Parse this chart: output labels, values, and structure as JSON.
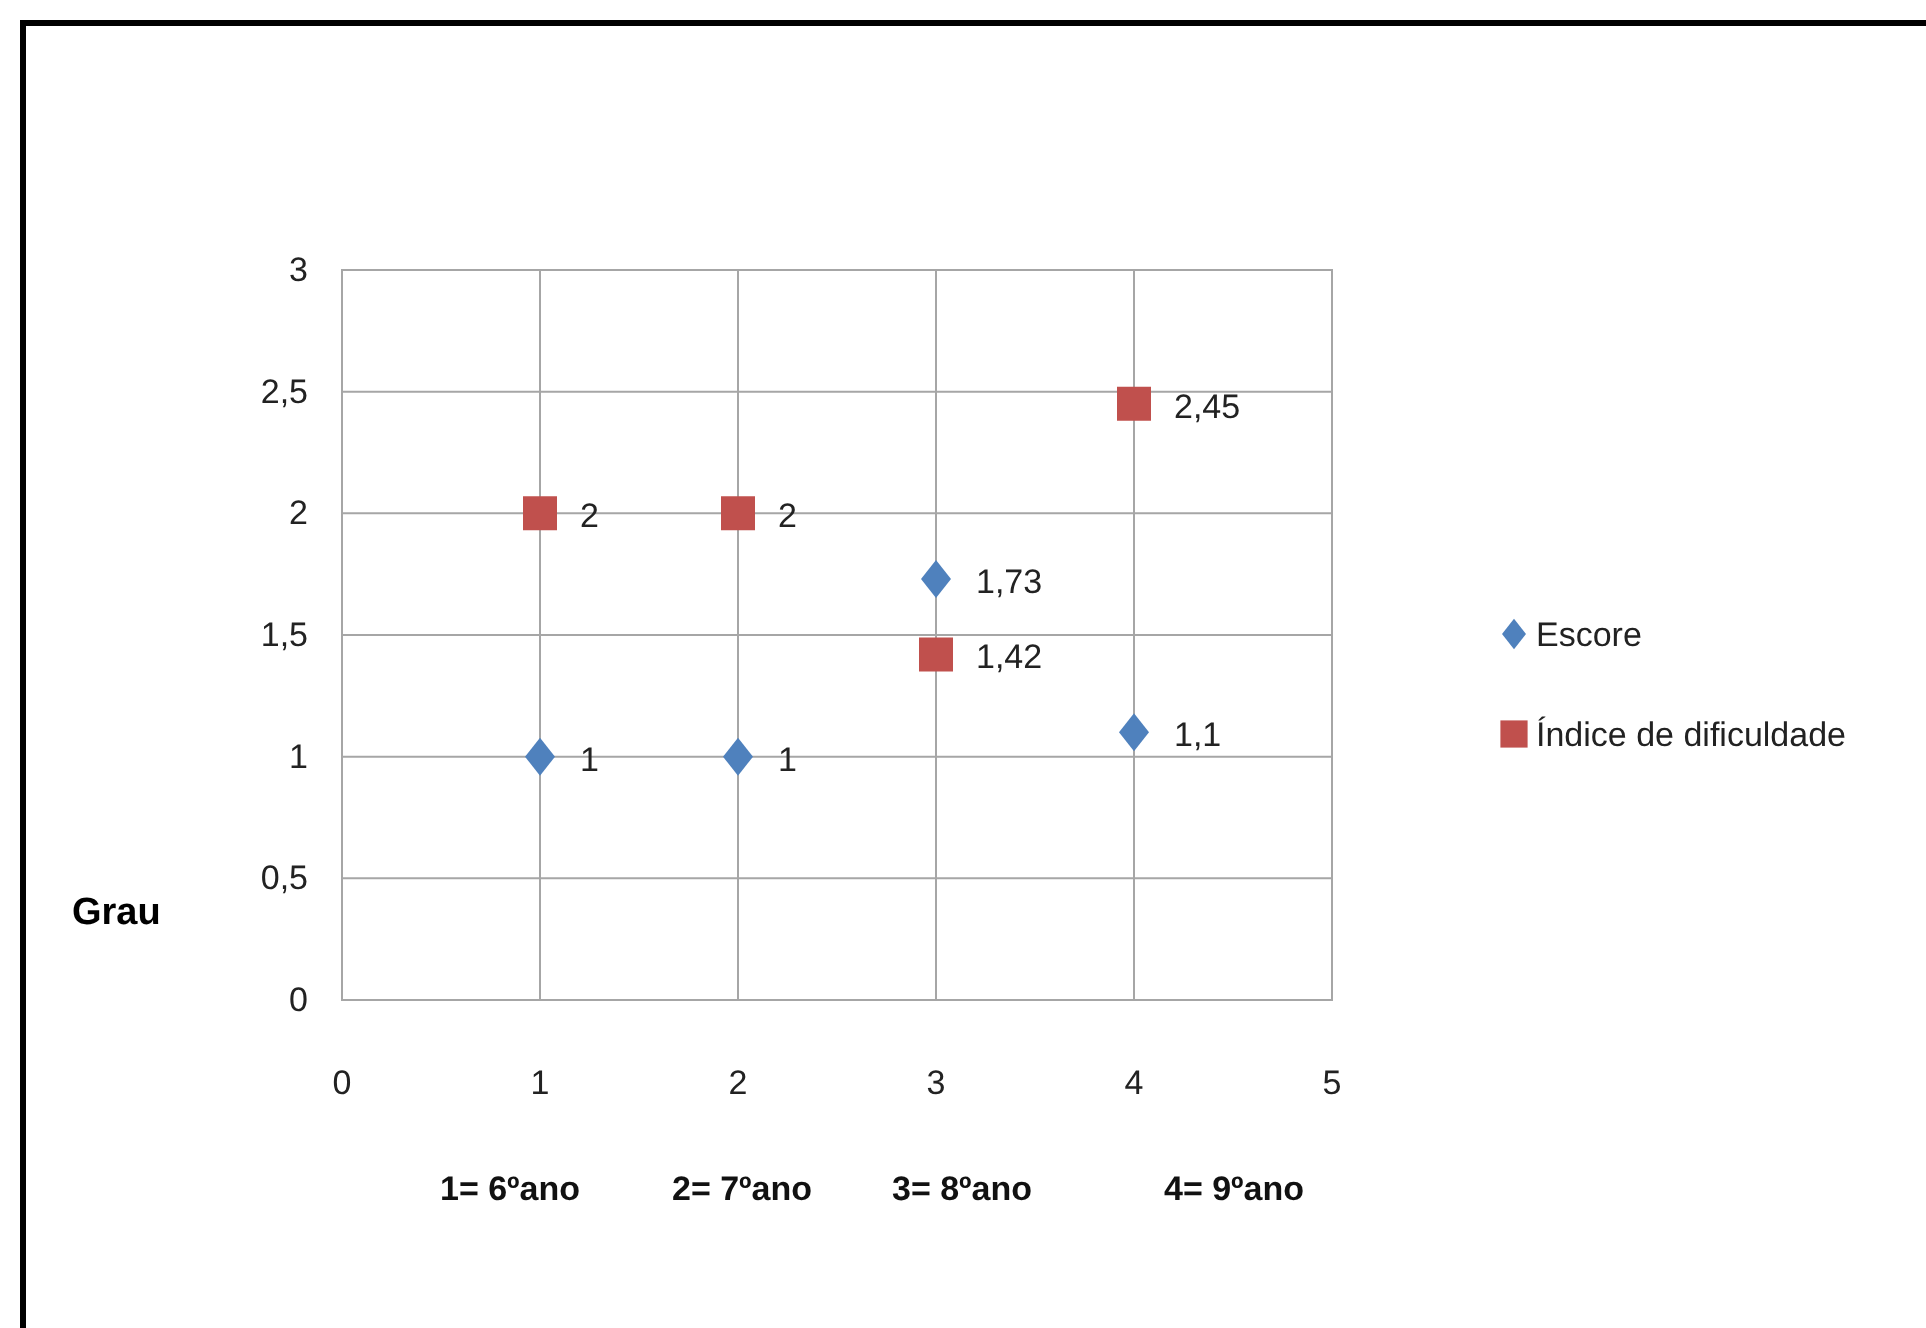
{
  "chart_data": {
    "type": "scatter",
    "ylabel": "Grau",
    "annotations": [
      "1= 6ºano",
      "2= 7ºano",
      "3= 8ºano",
      "4= 9ºano"
    ],
    "series": [
      {
        "name": "Escore",
        "color": "#4f81bd",
        "marker": "diamond",
        "x": [
          1,
          2,
          3,
          4
        ],
        "values": [
          1,
          1,
          1.73,
          1.1
        ],
        "value_labels": [
          "1",
          "1",
          "1,73",
          "1,1"
        ]
      },
      {
        "name": "Índice de dificuldade",
        "color": "#c0504d",
        "marker": "square",
        "x": [
          1,
          2,
          3,
          4
        ],
        "values": [
          2,
          2,
          1.42,
          2.45
        ],
        "value_labels": [
          "2",
          "2",
          "1,42",
          "2,45"
        ]
      }
    ],
    "xlim": [
      0,
      5
    ],
    "xticks": [
      0,
      1,
      2,
      3,
      4,
      5
    ],
    "ylim": [
      0,
      3
    ],
    "yticks": [
      0,
      {
        "value": 0.5,
        "label": "0,5"
      },
      1,
      {
        "value": 1.5,
        "label": "1,5"
      },
      2,
      {
        "value": 2.5,
        "label": "2,5"
      },
      3
    ],
    "grid": true,
    "legend": "right"
  }
}
